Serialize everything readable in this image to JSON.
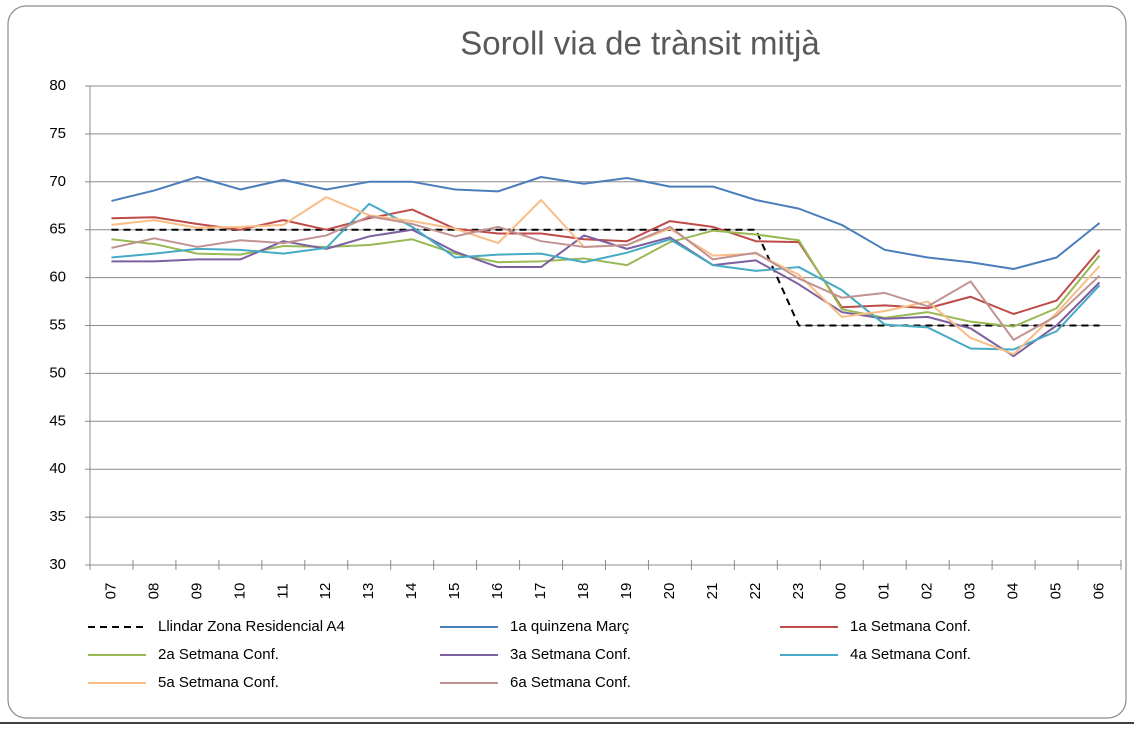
{
  "chart_data": {
    "type": "line",
    "title": "Soroll via de trànsit mitjà",
    "categories": [
      "07",
      "08",
      "09",
      "10",
      "11",
      "12",
      "13",
      "14",
      "15",
      "16",
      "17",
      "18",
      "19",
      "20",
      "21",
      "22",
      "23",
      "00",
      "01",
      "02",
      "03",
      "04",
      "05",
      "06"
    ],
    "ylim": [
      30,
      80
    ],
    "yticks": [
      30,
      35,
      40,
      45,
      50,
      55,
      60,
      65,
      70,
      75,
      80
    ],
    "grid": true,
    "series": [
      {
        "name": "Llindar Zona Residencial A4",
        "color": "#000000",
        "line_style": "dashed",
        "values": [
          65,
          65,
          65,
          65,
          65,
          65,
          65,
          65,
          65,
          65,
          65,
          65,
          65,
          65,
          65,
          65,
          55,
          55,
          55,
          55,
          55,
          55,
          55,
          55
        ]
      },
      {
        "name": "1a quinzena Març",
        "color": "#4a7ebb",
        "values": [
          68.0,
          69.1,
          70.5,
          69.2,
          70.2,
          69.2,
          70.0,
          70.0,
          69.2,
          69.0,
          70.5,
          69.8,
          70.4,
          69.5,
          69.5,
          68.1,
          67.2,
          65.5,
          62.9,
          62.1,
          61.6,
          60.9,
          62.1,
          65.7
        ]
      },
      {
        "name": "1a Setmana Conf.",
        "color": "#be4b48",
        "values": [
          66.2,
          66.3,
          65.6,
          65.0,
          66.0,
          65.0,
          66.2,
          67.1,
          65.1,
          64.6,
          64.6,
          64.0,
          63.8,
          65.9,
          65.3,
          63.8,
          63.7,
          56.9,
          57.1,
          56.8,
          58.0,
          56.2,
          57.6,
          62.9
        ]
      },
      {
        "name": "2a Setmana Conf.",
        "color": "#98b954",
        "values": [
          64.0,
          63.5,
          62.5,
          62.4,
          63.3,
          63.2,
          63.4,
          64.0,
          62.5,
          61.6,
          61.7,
          62.0,
          61.3,
          63.7,
          64.9,
          64.5,
          63.9,
          56.7,
          55.8,
          56.4,
          55.4,
          54.9,
          56.8,
          62.3
        ]
      },
      {
        "name": "3a Setmana Conf.",
        "color": "#7d60a0",
        "values": [
          61.7,
          61.7,
          61.9,
          61.9,
          63.8,
          63.0,
          64.3,
          65.0,
          62.7,
          61.1,
          61.1,
          64.4,
          63.0,
          64.2,
          61.3,
          61.8,
          59.3,
          56.4,
          55.7,
          55.9,
          54.7,
          51.8,
          55.0,
          59.5
        ]
      },
      {
        "name": "4a Setmana Conf.",
        "color": "#46aac5",
        "values": [
          62.1,
          62.5,
          63.0,
          62.9,
          62.5,
          63.1,
          67.7,
          65.3,
          62.1,
          62.4,
          62.5,
          61.6,
          62.6,
          64.0,
          61.3,
          60.7,
          61.1,
          58.7,
          55.1,
          54.8,
          52.6,
          52.5,
          54.4,
          59.2
        ]
      },
      {
        "name": "5a Setmana Conf.",
        "color": "#f9bd85",
        "values": [
          65.5,
          66.0,
          65.2,
          65.3,
          65.5,
          68.4,
          66.5,
          65.9,
          65.1,
          63.6,
          68.1,
          63.2,
          63.4,
          65.1,
          62.3,
          62.5,
          60.3,
          55.9,
          56.5,
          57.5,
          53.7,
          52.0,
          56.3,
          61.2
        ]
      },
      {
        "name": "6a Setmana Conf.",
        "color": "#c09392",
        "values": [
          63.1,
          64.1,
          63.2,
          63.9,
          63.6,
          64.4,
          66.4,
          65.6,
          64.3,
          65.3,
          63.8,
          63.2,
          63.4,
          65.3,
          61.9,
          62.6,
          59.9,
          57.9,
          58.4,
          57.0,
          59.6,
          53.5,
          56.0,
          60.2
        ]
      }
    ]
  }
}
